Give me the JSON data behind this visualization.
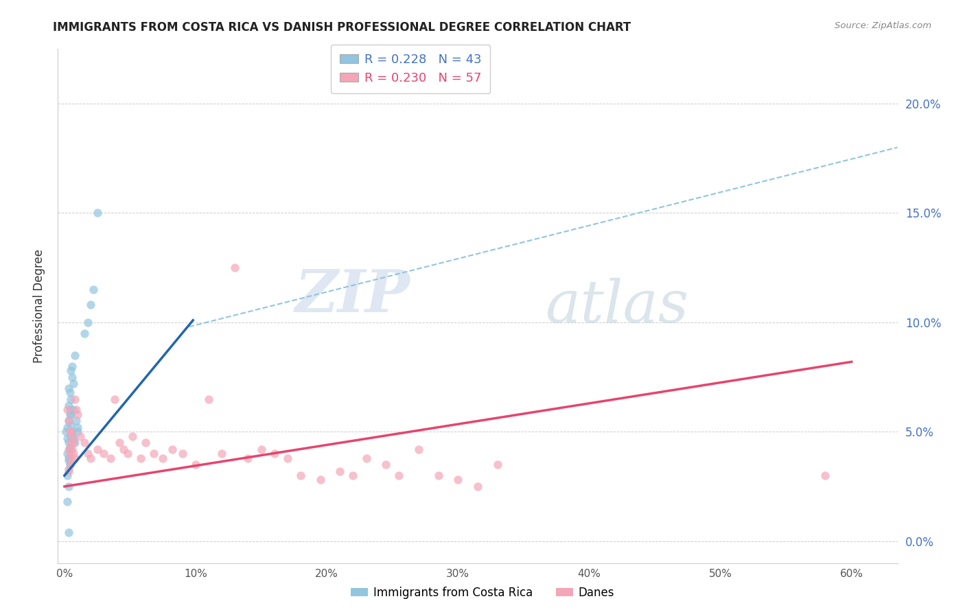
{
  "title": "IMMIGRANTS FROM COSTA RICA VS DANISH PROFESSIONAL DEGREE CORRELATION CHART",
  "source": "Source: ZipAtlas.com",
  "ylabel": "Professional Degree",
  "xlabel_ticks": [
    0.0,
    0.1,
    0.2,
    0.3,
    0.4,
    0.5,
    0.6
  ],
  "ylabel_ticks": [
    0.0,
    0.05,
    0.1,
    0.15,
    0.2
  ],
  "xlim": [
    -0.005,
    0.635
  ],
  "ylim": [
    -0.01,
    0.225
  ],
  "watermark_zip": "ZIP",
  "watermark_atlas": "atlas",
  "blue_color": "#92c5de",
  "pink_color": "#f4a6b8",
  "blue_line_color": "#2166ac",
  "pink_line_color": "#e8436e",
  "dashed_line_color": "#92c5de",
  "legend_blue_label_r": "R = 0.228",
  "legend_blue_label_n": "N = 43",
  "legend_pink_label_r": "R = 0.230",
  "legend_pink_label_n": "N = 57",
  "legend1_label": "Immigrants from Costa Rica",
  "legend2_label": "Danes",
  "right_axis_color": "#4472c4",
  "blue_scatter_x": [
    0.001,
    0.002,
    0.003,
    0.004,
    0.005,
    0.003,
    0.002,
    0.004,
    0.003,
    0.005,
    0.002,
    0.003,
    0.004,
    0.003,
    0.002,
    0.004,
    0.003,
    0.005,
    0.004,
    0.003,
    0.006,
    0.007,
    0.005,
    0.006,
    0.008,
    0.007,
    0.009,
    0.01,
    0.008,
    0.006,
    0.015,
    0.018,
    0.02,
    0.022,
    0.025,
    0.005,
    0.004,
    0.003,
    0.006,
    0.007,
    0.002,
    0.01,
    0.003
  ],
  "blue_scatter_y": [
    0.05,
    0.047,
    0.045,
    0.042,
    0.058,
    0.055,
    0.052,
    0.06,
    0.038,
    0.065,
    0.04,
    0.037,
    0.035,
    0.033,
    0.03,
    0.068,
    0.07,
    0.048,
    0.043,
    0.025,
    0.075,
    0.072,
    0.078,
    0.08,
    0.085,
    0.06,
    0.055,
    0.05,
    0.045,
    0.048,
    0.095,
    0.1,
    0.108,
    0.115,
    0.15,
    0.053,
    0.058,
    0.062,
    0.05,
    0.047,
    0.018,
    0.052,
    0.004
  ],
  "pink_scatter_x": [
    0.002,
    0.003,
    0.004,
    0.005,
    0.003,
    0.004,
    0.005,
    0.004,
    0.003,
    0.005,
    0.006,
    0.007,
    0.008,
    0.006,
    0.007,
    0.008,
    0.009,
    0.01,
    0.012,
    0.015,
    0.018,
    0.02,
    0.025,
    0.03,
    0.035,
    0.038,
    0.042,
    0.045,
    0.048,
    0.052,
    0.058,
    0.062,
    0.068,
    0.075,
    0.082,
    0.09,
    0.1,
    0.11,
    0.12,
    0.13,
    0.14,
    0.15,
    0.16,
    0.17,
    0.18,
    0.195,
    0.21,
    0.22,
    0.23,
    0.245,
    0.255,
    0.27,
    0.285,
    0.3,
    0.315,
    0.33,
    0.58
  ],
  "pink_scatter_y": [
    0.06,
    0.055,
    0.05,
    0.045,
    0.042,
    0.04,
    0.038,
    0.035,
    0.032,
    0.05,
    0.048,
    0.045,
    0.065,
    0.042,
    0.04,
    0.038,
    0.06,
    0.058,
    0.048,
    0.045,
    0.04,
    0.038,
    0.042,
    0.04,
    0.038,
    0.065,
    0.045,
    0.042,
    0.04,
    0.048,
    0.038,
    0.045,
    0.04,
    0.038,
    0.042,
    0.04,
    0.035,
    0.065,
    0.04,
    0.125,
    0.038,
    0.042,
    0.04,
    0.038,
    0.03,
    0.028,
    0.032,
    0.03,
    0.038,
    0.035,
    0.03,
    0.042,
    0.03,
    0.028,
    0.025,
    0.035,
    0.03
  ],
  "blue_line_x": [
    0.0,
    0.098
  ],
  "blue_line_y": [
    0.03,
    0.101
  ],
  "pink_line_x": [
    0.0,
    0.6
  ],
  "pink_line_y": [
    0.025,
    0.082
  ],
  "dashed_line_x": [
    0.095,
    0.635
  ],
  "dashed_line_y": [
    0.098,
    0.18
  ]
}
